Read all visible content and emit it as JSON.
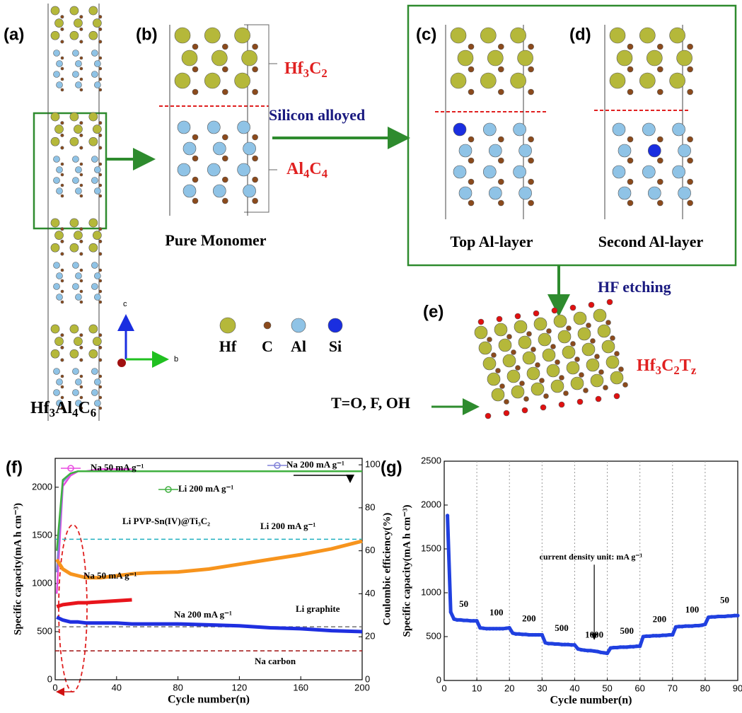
{
  "panel_labels": [
    "(a)",
    "(b)",
    "(c)",
    "(d)",
    "(e)",
    "(f)",
    "(g)"
  ],
  "formulas": {
    "hf3al4c6": [
      "Hf",
      "3",
      "Al",
      "4",
      "C",
      "6"
    ],
    "hf3c2": [
      "Hf",
      "3",
      "C",
      "2"
    ],
    "al4c4": [
      "Al",
      "4",
      "C",
      "4"
    ],
    "hf3c2tz": [
      "Hf",
      "3",
      "C",
      "2",
      "T",
      "z"
    ]
  },
  "texts": {
    "silicon_alloyed": "Silicon alloyed",
    "pure_monomer": "Pure Monomer",
    "top_al_layer": "Top Al-layer",
    "second_al_layer": "Second Al-layer",
    "hf_etching": "HF etching",
    "terminations": "T=O, F, OH"
  },
  "atom_legend": [
    "Hf",
    "C",
    "Al",
    "Si"
  ],
  "axis_labels": [
    "c",
    "b"
  ],
  "chart_data": [
    {
      "type": "line",
      "x": [
        1,
        5,
        10,
        15,
        20,
        30,
        40,
        50,
        60,
        80,
        100,
        120,
        140,
        160,
        180,
        200
      ],
      "xlim": [
        0,
        200
      ],
      "xticks": [
        0,
        40,
        80,
        120,
        160,
        200
      ],
      "ylim": [
        0,
        2300
      ],
      "yticks": [
        0,
        500,
        1000,
        1500,
        2000
      ],
      "y2lim": [
        0,
        103
      ],
      "y2ticks": [
        0,
        20,
        40,
        60,
        80,
        100
      ],
      "xlabel": "Cycle number(n)",
      "ylabel": "Specific capacity(mA h cm⁻³)",
      "y2label": "Coulombic efficiency(%)",
      "series": [
        {
          "name": "Na 50 mA g⁻¹",
          "color": "#e848e0",
          "axis": "y2",
          "values": [
            40,
            90,
            95,
            97,
            97,
            98,
            98,
            98,
            null,
            null,
            null,
            null,
            null,
            null,
            null,
            null
          ]
        },
        {
          "name": "Na 200 mA g⁻¹",
          "color": "#8080d8",
          "axis": "y2",
          "values": [
            50,
            92,
            96,
            97,
            97,
            97,
            97,
            97,
            97,
            97,
            97,
            97,
            97,
            97,
            97,
            97
          ]
        },
        {
          "name": "Li 200 mA g⁻¹",
          "color": "#40b040",
          "axis": "y2",
          "values": [
            60,
            93,
            96,
            97,
            97,
            97,
            97,
            97,
            97,
            97,
            97,
            97,
            97,
            97,
            97,
            97
          ]
        },
        {
          "name": "Li 200 mA g⁻¹",
          "color": "#f7941d",
          "values": [
            1250,
            1150,
            1100,
            1080,
            1060,
            1060,
            1080,
            1100,
            1110,
            1120,
            1150,
            1200,
            1250,
            1300,
            1360,
            1440
          ]
        },
        {
          "name": "Na 50 mA g⁻¹",
          "color": "#e8141b",
          "values": [
            760,
            780,
            790,
            800,
            800,
            810,
            820,
            830,
            null,
            null,
            null,
            null,
            null,
            null,
            null,
            null
          ]
        },
        {
          "name": "Na 200 mA g⁻¹",
          "color": "#1f2fe0",
          "values": [
            650,
            620,
            600,
            600,
            590,
            590,
            590,
            580,
            580,
            580,
            570,
            560,
            540,
            530,
            510,
            500
          ]
        }
      ],
      "reference_lines": [
        {
          "name": "Li  PVP-Sn(IV)@Ti₃C₂",
          "value": 1460,
          "color": "#20b0c0"
        },
        {
          "name": "Li graphite",
          "value": 550,
          "color": "#707070"
        },
        {
          "name": "Na carbon",
          "value": 300,
          "color": "#a01010"
        }
      ]
    },
    {
      "type": "line",
      "x": [
        1,
        2,
        3,
        4,
        5,
        6,
        7,
        8,
        9,
        10,
        11,
        12,
        13,
        14,
        15,
        16,
        17,
        18,
        19,
        20,
        21,
        22,
        23,
        24,
        25,
        26,
        27,
        28,
        29,
        30,
        31,
        32,
        33,
        34,
        35,
        36,
        37,
        38,
        39,
        40,
        41,
        42,
        43,
        44,
        45,
        46,
        47,
        48,
        49,
        50,
        51,
        52,
        53,
        54,
        55,
        56,
        57,
        58,
        59,
        60,
        61,
        62,
        63,
        64,
        65,
        66,
        67,
        68,
        69,
        70,
        71,
        72,
        73,
        74,
        75,
        76,
        77,
        78,
        79,
        80,
        81,
        82,
        83,
        84,
        85,
        86,
        87,
        88,
        89,
        90
      ],
      "xlim": [
        0,
        90
      ],
      "xticks": [
        0,
        10,
        20,
        30,
        40,
        50,
        60,
        70,
        80,
        90
      ],
      "ylim": [
        0,
        2500
      ],
      "yticks": [
        0,
        500,
        1000,
        1500,
        2000,
        2500
      ],
      "xgrid": true,
      "xlabel": "Cycle number(n)",
      "ylabel": "Specific capacity(mA h cm⁻³)",
      "series": [
        {
          "color": "#2040e0",
          "values": [
            1880,
            780,
            700,
            690,
            690,
            685,
            685,
            680,
            680,
            680,
            600,
            595,
            590,
            590,
            590,
            590,
            590,
            590,
            595,
            600,
            540,
            530,
            530,
            525,
            525,
            520,
            520,
            520,
            520,
            520,
            430,
            420,
            420,
            415,
            415,
            410,
            410,
            410,
            405,
            405,
            360,
            350,
            345,
            340,
            340,
            335,
            330,
            320,
            315,
            310,
            370,
            375,
            375,
            380,
            380,
            380,
            385,
            385,
            390,
            390,
            500,
            505,
            505,
            510,
            510,
            510,
            515,
            515,
            520,
            520,
            610,
            615,
            615,
            620,
            620,
            620,
            625,
            625,
            630,
            640,
            720,
            725,
            725,
            730,
            730,
            730,
            735,
            735,
            740,
            740
          ]
        }
      ],
      "step_labels": [
        "50",
        "100",
        "200",
        "500",
        "1000",
        "500",
        "200",
        "100",
        "50"
      ],
      "annotation": "current density unit: mA g⁻¹"
    }
  ]
}
